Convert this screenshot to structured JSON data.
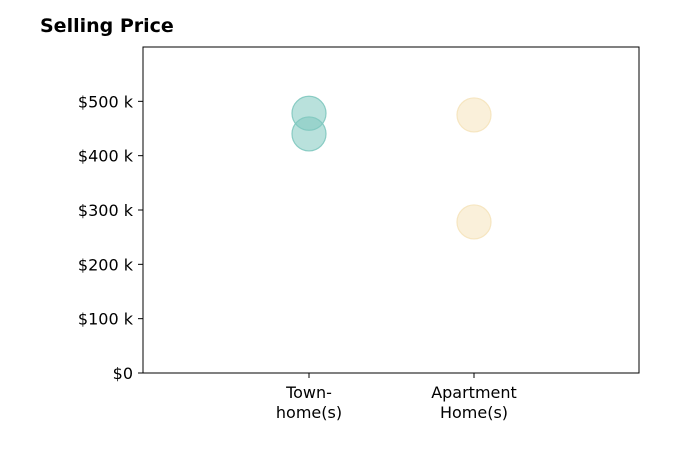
{
  "chart_data": {
    "type": "scatter",
    "title": "Selling Price",
    "xlabel": "",
    "ylabel": "",
    "categories": [
      [
        "Town-",
        "home(s)"
      ],
      [
        "Apartment",
        "Home(s)"
      ]
    ],
    "ylim": [
      0,
      600
    ],
    "yticks": [
      0,
      100,
      200,
      300,
      400,
      500
    ],
    "ytick_labels": [
      "$0",
      "$100 k",
      "$200 k",
      "$300 k",
      "$400 k",
      "$500 k"
    ],
    "grid": false,
    "series": [
      {
        "category": "Town-home(s)",
        "color": "#7fc8bf",
        "values": [
          478,
          440
        ]
      },
      {
        "category": "Apartment Home(s)",
        "color": "#f5e3bb",
        "values": [
          475,
          278
        ]
      }
    ]
  }
}
